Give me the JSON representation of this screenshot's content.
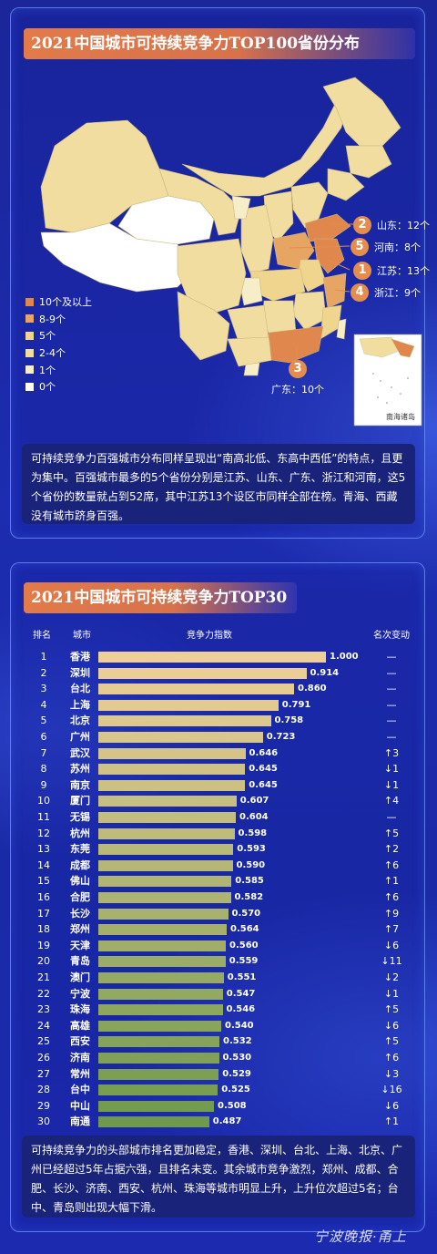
{
  "section1": {
    "title": "2021中国城市可持续竞争力TOP100省份分布",
    "legend": [
      {
        "label": "10个及以上",
        "color": "#e0874e"
      },
      {
        "label": "8-9个",
        "color": "#e6a562"
      },
      {
        "label": "5个",
        "color": "#f0d58e"
      },
      {
        "label": "2-4个",
        "color": "#f2dda0"
      },
      {
        "label": "1个",
        "color": "#f6edc9"
      },
      {
        "label": "0个",
        "color": "#ffffff"
      }
    ],
    "callouts": [
      {
        "num": "2",
        "label": "山东：12个"
      },
      {
        "num": "5",
        "label": "河南：8个"
      },
      {
        "num": "1",
        "label": "江苏：13个"
      },
      {
        "num": "4",
        "label": "浙江：9个"
      },
      {
        "num": "3",
        "label": "广东：10个"
      }
    ],
    "inset_label": "南海诸岛",
    "note": "可持续竞争力百强城市分布同样呈现出“南高北低、东高中西低”的特点，且更为集中。百强城市最多的5个省份分别是江苏、山东、广东、浙江和河南，这5个省份的数量就占到52席，其中江苏13个设区市同样全部在榜。青海、西藏没有城市跻身百强。"
  },
  "section2": {
    "title": "2021中国城市可持续竞争力TOP30",
    "headers": {
      "rank": "排名",
      "city": "城市",
      "index": "竞争力指数",
      "change": "名次变动"
    },
    "note": "可持续竞争力的头部城市排名更加稳定，香港、深圳、台北、上海、北京、广州已经超过5年占据六强，且排名未变。其余城市竞争激烈，郑州、成都、合肥、长沙、济南、西安、杭州、珠海等城市明显上升，上升位次超过5名；台中、青岛则出现大幅下滑。"
  },
  "chart_data": {
    "type": "bar",
    "title": "2021中国城市可持续竞争力TOP30",
    "xlabel": "竞争力指数",
    "ylabel": "城市",
    "xlim": [
      0,
      1
    ],
    "categories": [
      "香港",
      "深圳",
      "台北",
      "上海",
      "北京",
      "广州",
      "武汉",
      "苏州",
      "南京",
      "厦门",
      "无锡",
      "杭州",
      "东莞",
      "成都",
      "佛山",
      "合肥",
      "长沙",
      "郑州",
      "天津",
      "青岛",
      "澳门",
      "宁波",
      "珠海",
      "高雄",
      "西安",
      "济南",
      "常州",
      "台中",
      "中山",
      "南通"
    ],
    "ranks": [
      "1",
      "2",
      "3",
      "4",
      "5",
      "6",
      "7",
      "8",
      "9",
      "10",
      "11",
      "12",
      "13",
      "14",
      "15",
      "16",
      "17",
      "18",
      "19",
      "20",
      "21",
      "22",
      "23",
      "24",
      "25",
      "26",
      "27",
      "28",
      "29",
      "30"
    ],
    "values": [
      1.0,
      0.914,
      0.86,
      0.791,
      0.758,
      0.723,
      0.646,
      0.645,
      0.645,
      0.607,
      0.604,
      0.598,
      0.593,
      0.59,
      0.585,
      0.582,
      0.57,
      0.564,
      0.56,
      0.559,
      0.551,
      0.547,
      0.546,
      0.54,
      0.532,
      0.53,
      0.529,
      0.525,
      0.508,
      0.487
    ],
    "value_labels": [
      "1.000",
      "0.914",
      "0.860",
      "0.791",
      "0.758",
      "0.723",
      "0.646",
      "0.645",
      "0.645",
      "0.607",
      "0.604",
      "0.598",
      "0.593",
      "0.590",
      "0.585",
      "0.582",
      "0.570",
      "0.564",
      "0.560",
      "0.559",
      "0.551",
      "0.547",
      "0.546",
      "0.540",
      "0.532",
      "0.530",
      "0.529",
      "0.525",
      "0.508",
      "0.487"
    ],
    "rank_change": [
      "—",
      "—",
      "—",
      "—",
      "—",
      "—",
      "↑3",
      "↓1",
      "↓1",
      "↑4",
      "—",
      "↑5",
      "↑2",
      "↑6",
      "↑1",
      "↑6",
      "↑9",
      "↑7",
      "↓6",
      "↓11",
      "↓2",
      "↓1",
      "↑5",
      "↓6",
      "↑5",
      "↑6",
      "↓3",
      "↓16",
      "↓6",
      "↑1"
    ],
    "bar_color_top": "#efcf98",
    "bar_color_bottom": "#6f9a4c"
  },
  "footer": {
    "logo": "宁波晚报·甬上"
  }
}
